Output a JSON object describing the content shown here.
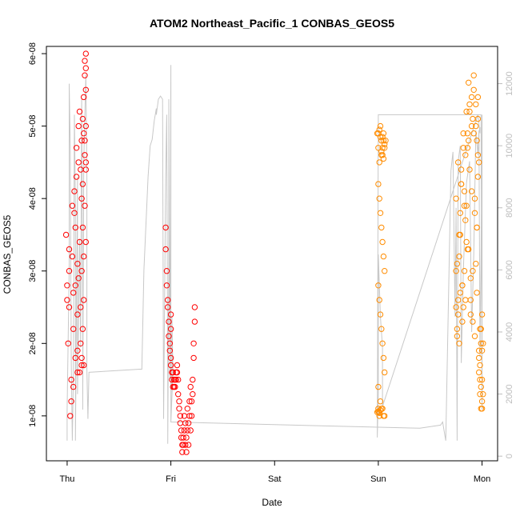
{
  "chart_data": {
    "type": "scatter",
    "title": "ATOM2 Northeast_Pacific_1 CONBAS_GEOS5",
    "xlabel": "Date",
    "ylabel": "CONBAS_GEOS5",
    "x_tick_labels": [
      "Thu",
      "Fri",
      "Sat",
      "Sun",
      "Mon"
    ],
    "x_ticks_days": [
      0,
      1,
      2,
      3,
      4
    ],
    "xlim_days": [
      -0.2,
      4.15
    ],
    "ylim": [
      3.8e-09,
      6.1e-08
    ],
    "y_tick_labels": [
      "1e-08",
      "2e-08",
      "3e-08",
      "4e-08",
      "5e-08",
      "6e-08"
    ],
    "y_ticks": [
      1e-08,
      2e-08,
      3e-08,
      4e-08,
      5e-08,
      6e-08
    ],
    "y2_tick_labels": [
      "0",
      "2000",
      "4000",
      "6000",
      "8000",
      "10000",
      "12000"
    ],
    "y2_ticks": [
      0,
      2000,
      4000,
      6000,
      8000,
      10000,
      12000
    ],
    "y2lim": [
      -150,
      13200
    ],
    "grid": false,
    "colors": {
      "red": "#ff0000",
      "orange": "#ff8c00",
      "altitude": "#c8c8c8",
      "axis_right": "#bdbdbd"
    },
    "series": [
      {
        "color": "red",
        "marker": "open-circle",
        "x": [
          -0.01,
          0.0,
          0.01,
          0.02,
          0.03,
          0.04,
          0.05,
          0.06,
          0.07,
          0.08,
          0.09,
          0.1,
          0.11,
          0.12,
          0.13,
          0.14,
          0.15,
          0.16,
          0.17,
          0.18,
          0.0,
          0.02,
          0.04,
          0.06,
          0.08,
          0.1,
          0.12,
          0.14,
          0.05,
          0.07,
          0.09,
          0.11,
          0.13,
          0.15,
          0.1,
          0.12,
          0.14,
          0.15,
          0.16,
          0.17,
          0.17,
          0.17,
          0.18,
          0.18,
          0.18,
          0.18,
          0.14,
          0.15,
          0.13,
          0.16,
          0.08,
          0.11,
          0.16,
          0.16,
          0.17,
          0.18,
          0.02,
          0.06,
          0.1,
          0.14,
          0.18,
          0.95,
          0.95,
          0.96,
          0.96,
          0.97,
          0.97,
          0.98,
          0.98,
          0.99,
          0.99,
          1.0,
          1.0,
          1.01,
          1.01,
          1.02,
          1.02,
          1.03,
          1.03,
          1.04,
          1.04,
          1.05,
          1.05,
          1.06,
          1.06,
          1.07,
          1.07,
          1.08,
          1.08,
          1.09,
          1.09,
          1.1,
          1.1,
          1.11,
          1.11,
          1.12,
          1.12,
          1.13,
          1.13,
          1.14,
          1.14,
          1.15,
          1.15,
          1.16,
          1.16,
          1.17,
          1.17,
          1.18,
          1.18,
          1.19,
          1.19,
          1.2,
          1.2,
          1.21,
          1.21,
          1.22,
          1.22,
          1.23,
          1.23,
          1.0,
          1.0
        ],
        "y": [
          3.5e-08,
          2.6e-08,
          2e-08,
          3.3e-08,
          1e-08,
          1.5e-08,
          3.9e-08,
          2.2e-08,
          4.1e-08,
          2.8e-08,
          4.7e-08,
          1.9e-08,
          5e-08,
          1.6e-08,
          4.4e-08,
          1.7e-08,
          3.6e-08,
          4.9e-08,
          5.9e-08,
          6e-08,
          2.8e-08,
          3e-08,
          1.2e-08,
          1.4e-08,
          1.8e-08,
          2.4e-08,
          5.2e-08,
          4e-08,
          3.2e-08,
          3.8e-08,
          4.3e-08,
          4.5e-08,
          2e-08,
          5.1e-08,
          1.6e-08,
          3.4e-08,
          1.8e-08,
          4.2e-08,
          5.4e-08,
          4.8e-08,
          5.7e-08,
          4.6e-08,
          5.8e-08,
          4.4e-08,
          4.5e-08,
          5.5e-08,
          3e-08,
          2.2e-08,
          2.5e-08,
          1.7e-08,
          3.6e-08,
          2.9e-08,
          3.2e-08,
          2.6e-08,
          3.9e-08,
          3.4e-08,
          2.5e-08,
          2.7e-08,
          3.1e-08,
          4.8e-08,
          5e-08,
          3.6e-08,
          3.3e-08,
          3e-08,
          2.8e-08,
          2.6e-08,
          2.5e-08,
          2.3e-08,
          2.1e-08,
          2e-08,
          1.9e-08,
          1.8e-08,
          1.7e-08,
          1.6e-08,
          1.5e-08,
          1.4e-08,
          1.6e-08,
          1.5e-08,
          1.4e-08,
          1.5e-08,
          1.4e-08,
          1.6e-08,
          1.5e-08,
          1.7e-08,
          1.6e-08,
          1.5e-08,
          1.3e-08,
          1.2e-08,
          1.1e-08,
          1e-08,
          9e-09,
          8e-09,
          7e-09,
          6e-09,
          5e-09,
          6e-09,
          7e-09,
          1e-08,
          8e-09,
          9e-09,
          6e-09,
          5e-09,
          7e-09,
          1.1e-08,
          8e-09,
          6e-09,
          9e-09,
          1.2e-08,
          1e-08,
          8e-09,
          1.4e-08,
          1.2e-08,
          1e-08,
          1.5e-08,
          1.3e-08,
          2e-08,
          1.8e-08,
          2.5e-08,
          2.3e-08,
          2.4e-08,
          2.2e-08
        ]
      },
      {
        "color": "orange",
        "marker": "open-circle",
        "x": [
          2.99,
          3.0,
          3.01,
          3.02,
          3.03,
          3.04,
          3.05,
          3.06,
          3.07,
          3.0,
          3.01,
          3.02,
          3.03,
          3.04,
          3.05,
          3.06,
          3.0,
          3.01,
          3.02,
          3.03,
          3.04,
          3.05,
          3.06,
          3.0,
          3.02,
          3.04,
          3.06,
          3.01,
          3.03,
          3.05,
          3.0,
          3.02,
          3.04,
          3.06,
          3.01,
          3.03,
          3.05,
          3.03,
          3.04,
          3.05,
          3.02,
          3.0,
          2.99,
          3.0,
          3.01,
          3.02,
          3.0,
          3.01,
          3.75,
          3.76,
          3.77,
          3.78,
          3.79,
          3.8,
          3.81,
          3.82,
          3.83,
          3.84,
          3.85,
          3.86,
          3.87,
          3.88,
          3.89,
          3.9,
          3.91,
          3.92,
          3.93,
          3.94,
          3.95,
          3.96,
          3.97,
          3.98,
          3.99,
          4.0,
          3.75,
          3.77,
          3.79,
          3.81,
          3.83,
          3.85,
          3.87,
          3.89,
          3.91,
          3.93,
          3.95,
          3.97,
          3.99,
          3.76,
          3.78,
          3.8,
          3.82,
          3.84,
          3.86,
          3.88,
          3.9,
          3.92,
          3.94,
          3.96,
          3.98,
          3.75,
          3.78,
          3.81,
          3.84,
          3.87,
          3.9,
          3.93,
          3.96,
          3.99,
          3.77,
          3.8,
          3.83,
          3.86,
          3.89,
          3.92,
          3.95,
          3.98,
          3.76,
          3.79,
          3.82,
          3.85,
          3.88,
          3.91,
          3.94,
          3.97,
          4.0,
          4.0,
          4.01,
          4.0,
          4.01,
          4.0,
          3.98,
          3.99,
          3.97,
          3.96,
          3.95
        ],
        "y": [
          4.9e-08,
          4.7e-08,
          4.5e-08,
          5e-08,
          4.8e-08,
          4.6e-08,
          4.9e-08,
          4.7e-08,
          4.8e-08,
          4.2e-08,
          4e-08,
          3.8e-08,
          3.6e-08,
          3.4e-08,
          3.2e-08,
          3e-08,
          2.8e-08,
          2.6e-08,
          2.4e-08,
          2.2e-08,
          2e-08,
          1.8e-08,
          1.6e-08,
          1.4e-08,
          1.2e-08,
          1.1e-08,
          1e-08,
          1.05e-08,
          1.1e-08,
          1e-08,
          1.06e-08,
          1.08e-08,
          4.85e-08,
          4.75e-08,
          4.95e-08,
          4.65e-08,
          4.55e-08,
          4.6e-08,
          4.7e-08,
          4.8e-08,
          4.85e-08,
          4.9e-08,
          1.05e-08,
          1.1e-08,
          1e-08,
          1.08e-08,
          1.06e-08,
          1.04e-08,
          2.5e-08,
          2.2e-08,
          4.5e-08,
          2e-08,
          3.5e-08,
          4.2e-08,
          2.8e-08,
          4.7e-08,
          3.9e-08,
          2.6e-08,
          5.2e-08,
          3.3e-08,
          5.6e-08,
          4.4e-08,
          2.4e-08,
          5.4e-08,
          3e-08,
          4.9e-08,
          2.1e-08,
          5.3e-08,
          3.6e-08,
          4.6e-08,
          1.6e-08,
          1.3e-08,
          1.1e-08,
          1.2e-08,
          3e-08,
          2.6e-08,
          3.8e-08,
          2.3e-08,
          4.1e-08,
          3.4e-08,
          4.8e-08,
          2.9e-08,
          5.1e-08,
          4e-08,
          2.7e-08,
          1.8e-08,
          1.4e-08,
          2.1e-08,
          3.2e-08,
          4.4e-08,
          2.5e-08,
          3.7e-08,
          4.9e-08,
          5.3e-08,
          4.1e-08,
          5.7e-08,
          3.1e-08,
          4.3e-08,
          2.2e-08,
          4e-08,
          3.5e-08,
          2.8e-08,
          4.6e-08,
          3.3e-08,
          5e-08,
          3.8e-08,
          5.4e-08,
          2e-08,
          2.4e-08,
          4.2e-08,
          3e-08,
          4.7e-08,
          2.6e-08,
          5.5e-08,
          3.6e-08,
          1.5e-08,
          3.1e-08,
          2.7e-08,
          4.9e-08,
          3.9e-08,
          5.2e-08,
          2.3e-08,
          5e-08,
          4.5e-08,
          1.9e-08,
          1.1e-08,
          1.3e-08,
          1.5e-08,
          2e-08,
          2.4e-08,
          1.7e-08,
          2.2e-08,
          1.9e-08,
          5.1e-08,
          4.8e-08
        ]
      }
    ],
    "altitude_line": {
      "axis": "right",
      "x": [
        0.0,
        0.0,
        0.02,
        0.02,
        0.03,
        0.04,
        0.05,
        0.06,
        0.07,
        0.08,
        0.08,
        0.1,
        0.1,
        0.12,
        0.13,
        0.14,
        0.15,
        0.15,
        0.16,
        0.18,
        0.19,
        0.19,
        0.2,
        0.21,
        0.7,
        0.72,
        0.74,
        0.76,
        0.78,
        0.8,
        0.82,
        0.84,
        0.86,
        0.86,
        0.88,
        0.9,
        0.92,
        0.93,
        0.95,
        0.96,
        0.97,
        0.97,
        0.98,
        0.98,
        0.99,
        1.0,
        1.0,
        1.0,
        1.01,
        1.01,
        1.02,
        1.0,
        1.0,
        3.4,
        3.6,
        3.62,
        3.65,
        3.7,
        3.72,
        3.74,
        3.75,
        3.76,
        3.77,
        3.79,
        3.8,
        3.82,
        3.85,
        3.88,
        3.9,
        3.92,
        3.94,
        3.96,
        3.97,
        3.98,
        3.99,
        4.0,
        4.0,
        4.0,
        3.99,
        3.0,
        2.99,
        3.0,
        3.0,
        3.02,
        3.04,
        3.04,
        3.96,
        3.98,
        3.98
      ],
      "y": [
        500,
        1500,
        6000,
        12000,
        10000,
        3000,
        500,
        2500,
        11000,
        8000,
        500,
        9000,
        2000,
        7000,
        3500,
        11500,
        5000,
        1500,
        9500,
        12300,
        9000,
        2800,
        1200,
        2700,
        2800,
        2800,
        6000,
        7500,
        9000,
        10000,
        10200,
        10800,
        11200,
        11000,
        11500,
        11600,
        11500,
        1200,
        9000,
        11000,
        2500,
        400,
        6000,
        11500,
        2500,
        12600,
        3000,
        1100,
        2000,
        4500,
        2700,
        1100,
        1100,
        900,
        1000,
        1100,
        500,
        9200,
        9800,
        4500,
        8000,
        500,
        9500,
        10000,
        3000,
        6000,
        8800,
        9500,
        4000,
        6500,
        10500,
        9700,
        10500,
        3200,
        6500,
        11000,
        10500,
        1500,
        11000,
        11000,
        600,
        2000,
        6500,
        4500,
        3500,
        1600,
        11000,
        10400,
        10600
      ]
    }
  }
}
